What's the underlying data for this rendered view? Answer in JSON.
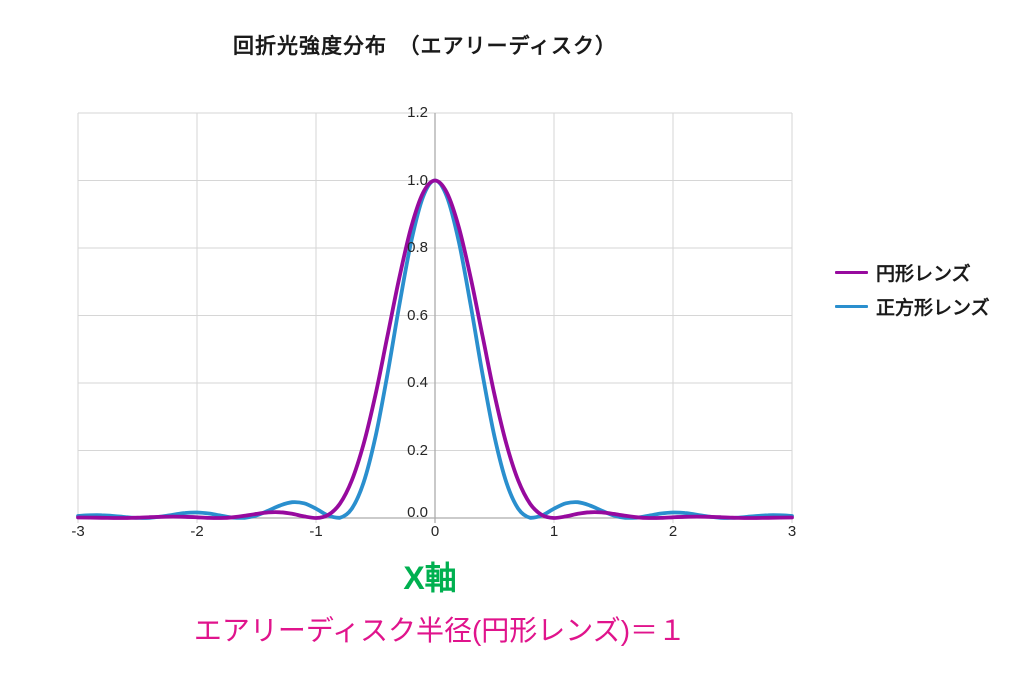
{
  "title": "回折光強度分布　（エアリーディスク）",
  "x_axis_label": "X軸",
  "footnote": "エアリーディスク半径(円形レンズ)＝１",
  "colors": {
    "title_text": "#1a1a1a",
    "tick_text": "#262626",
    "legend_text": "#1a1a1a",
    "gridline": "#d6d6d6",
    "axis": "#acacac",
    "circular_series": "#970a9e",
    "square_series": "#2a8fce",
    "x_axis_label": "#00b050",
    "footnote": "#e0148c"
  },
  "chart_data": {
    "type": "line",
    "title": "回折光強度分布　（エアリーディスク）",
    "xlabel": "X軸",
    "ylabel": "",
    "xlim": [
      -3,
      3
    ],
    "ylim": [
      0,
      1.2
    ],
    "grid": true,
    "legend_position": "right",
    "x_ticks": [
      -3,
      -2,
      -1,
      0,
      1,
      2,
      3
    ],
    "x_tick_labels": [
      "-3",
      "-2",
      "-1",
      "0",
      "1",
      "2",
      "3"
    ],
    "y_ticks": [
      0,
      0.2,
      0.4,
      0.6,
      0.8,
      1.0,
      1.2
    ],
    "y_tick_labels": [
      "0.0",
      "0.2",
      "0.4",
      "0.6",
      "0.8",
      "1.0",
      "1.2"
    ],
    "x": [
      -3.0,
      -2.9,
      -2.8,
      -2.7,
      -2.6,
      -2.5,
      -2.4,
      -2.3,
      -2.2,
      -2.1,
      -2.0,
      -1.9,
      -1.8,
      -1.7,
      -1.6,
      -1.5,
      -1.4,
      -1.3,
      -1.2,
      -1.1,
      -1.0,
      -0.9,
      -0.8,
      -0.7,
      -0.6,
      -0.5,
      -0.4,
      -0.3,
      -0.2,
      -0.1,
      0.0,
      0.1,
      0.2,
      0.3,
      0.4,
      0.5,
      0.6,
      0.7,
      0.8,
      0.9,
      1.0,
      1.1,
      1.2,
      1.3,
      1.4,
      1.5,
      1.6,
      1.7,
      1.8,
      1.9,
      2.0,
      2.1,
      2.2,
      2.3,
      2.4,
      2.5,
      2.6,
      2.7,
      2.8,
      2.9,
      3.0
    ],
    "series": [
      {
        "name": "円形レンズ",
        "color": "#970a9e",
        "description": "Airy pattern (circular lens), first zero at x = 1",
        "values": [
          0.0016,
          0.0012,
          0.0006,
          0.0001,
          0.0001,
          0.0009,
          0.0023,
          0.0036,
          0.0041,
          0.0036,
          0.002,
          0.0004,
          0.0001,
          0.0021,
          0.0065,
          0.0122,
          0.0166,
          0.017,
          0.0124,
          0.0046,
          0.0,
          0.0085,
          0.0419,
          0.1106,
          0.2193,
          0.3652,
          0.5383,
          0.7118,
          0.8619,
          0.9639,
          1.0,
          0.9639,
          0.8619,
          0.7118,
          0.5383,
          0.3652,
          0.2193,
          0.1106,
          0.0419,
          0.0085,
          0.0,
          0.0046,
          0.0124,
          0.017,
          0.0166,
          0.0122,
          0.0065,
          0.0021,
          0.0001,
          0.0004,
          0.002,
          0.0036,
          0.0041,
          0.0036,
          0.0023,
          0.0009,
          0.0001,
          0.0001,
          0.0006,
          0.0012,
          0.0016
        ]
      },
      {
        "name": "正方形レンズ",
        "color": "#2a8fce",
        "description": "sinc² pattern (square lens), first zero at x ≈ 0.82",
        "values": [
          0.0058,
          0.008,
          0.0081,
          0.0059,
          0.0027,
          0.0003,
          0.0006,
          0.0042,
          0.0099,
          0.0149,
          0.0164,
          0.0133,
          0.007,
          0.0013,
          0.0006,
          0.0078,
          0.0219,
          0.0374,
          0.0467,
          0.0435,
          0.0277,
          0.0077,
          0.0006,
          0.0272,
          0.1052,
          0.2408,
          0.4249,
          0.6302,
          0.8189,
          0.9519,
          1.0,
          0.9519,
          0.8189,
          0.6302,
          0.4249,
          0.2408,
          0.1052,
          0.0272,
          0.0006,
          0.0077,
          0.0277,
          0.0435,
          0.0467,
          0.0374,
          0.0219,
          0.0078,
          0.0006,
          0.0013,
          0.007,
          0.0133,
          0.0164,
          0.0149,
          0.0099,
          0.0042,
          0.0006,
          0.0003,
          0.0027,
          0.0059,
          0.0081,
          0.008,
          0.0058
        ]
      }
    ]
  }
}
